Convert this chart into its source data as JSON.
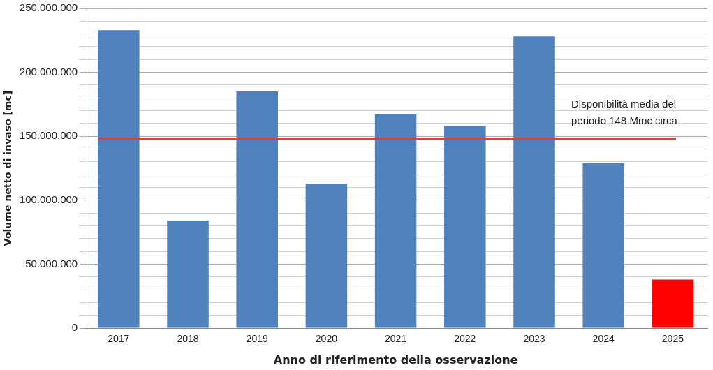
{
  "chart_data": {
    "type": "bar",
    "xlabel": "Anno di riferimento della osservazione",
    "ylabel": "Volume netto di invaso [mc]",
    "categories": [
      "2017",
      "2018",
      "2019",
      "2020",
      "2021",
      "2022",
      "2023",
      "2024",
      "2025"
    ],
    "values": [
      233000000,
      84000000,
      185000000,
      113000000,
      167000000,
      158000000,
      228000000,
      129000000,
      38000000
    ],
    "colors": [
      "#4f81bd",
      "#4f81bd",
      "#4f81bd",
      "#4f81bd",
      "#4f81bd",
      "#4f81bd",
      "#4f81bd",
      "#4f81bd",
      "#ff0000"
    ],
    "ylim": [
      0,
      250000000
    ],
    "yticks": [
      0,
      {
        "value": 10000000,
        "label": null
      },
      {
        "value": 20000000,
        "label": null
      },
      {
        "value": 30000000,
        "label": null
      },
      {
        "value": 40000000,
        "label": null
      },
      {
        "value": 50000000,
        "label": "50.000.000"
      },
      {
        "value": 60000000,
        "label": null
      },
      {
        "value": 70000000,
        "label": null
      },
      {
        "value": 80000000,
        "label": null
      },
      {
        "value": 90000000,
        "label": null
      },
      {
        "value": 100000000,
        "label": "100.000.000"
      },
      {
        "value": 110000000,
        "label": null
      },
      {
        "value": 120000000,
        "label": null
      },
      {
        "value": 130000000,
        "label": null
      },
      {
        "value": 140000000,
        "label": null
      },
      {
        "value": 150000000,
        "label": "150.000.000"
      },
      {
        "value": 160000000,
        "label": null
      },
      {
        "value": 170000000,
        "label": null
      },
      {
        "value": 180000000,
        "label": null
      },
      {
        "value": 190000000,
        "label": null
      },
      {
        "value": 200000000,
        "label": "200.000.000"
      },
      {
        "value": 210000000,
        "label": null
      },
      {
        "value": 220000000,
        "label": null
      },
      {
        "value": 230000000,
        "label": null
      },
      {
        "value": 240000000,
        "label": null
      },
      {
        "value": 250000000,
        "label": "250.000.000"
      }
    ],
    "ref_lines": [
      {
        "axis": "y",
        "value": 148000000,
        "label": "Disponibilità media del periodo 148 Mmc circa",
        "color": "#d9403a"
      }
    ],
    "grid": "y",
    "legend": false
  }
}
